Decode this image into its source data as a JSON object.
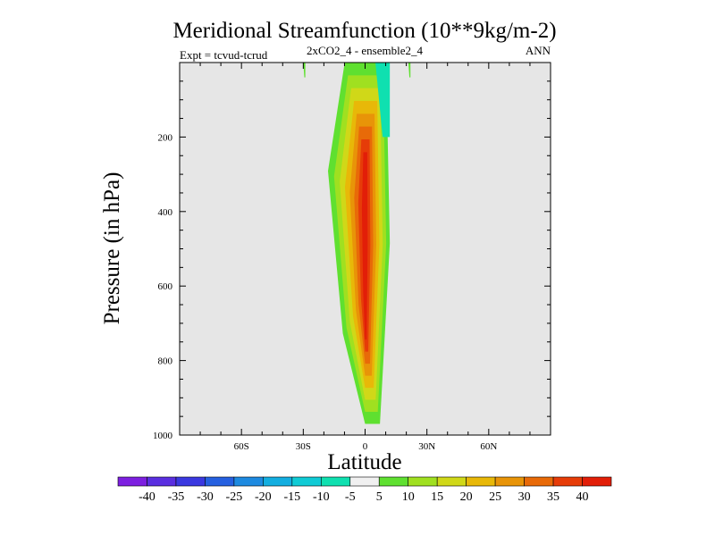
{
  "chart_data": {
    "type": "contour",
    "title": "Meridional Streamfunction (10**9kg/m-2)",
    "subtitle": "2xCO2_4 - ensemble2_4",
    "left_annotation": "Expt = tcvud-tcrud",
    "right_annotation": "ANN",
    "xlabel": "Latitude",
    "ylabel": "Pressure (in hPa)",
    "xlim": [
      -90,
      90
    ],
    "ylim": [
      1000,
      0
    ],
    "x_ticks": [
      -60,
      -30,
      0,
      30,
      60
    ],
    "x_tick_labels": [
      "60S",
      "30S",
      "0",
      "30N",
      "60N"
    ],
    "y_ticks": [
      200,
      400,
      600,
      800,
      1000
    ],
    "y_tick_labels": [
      "200",
      "400",
      "600",
      "800",
      "1000"
    ],
    "background_color": "#e6e6e6",
    "colorbar": {
      "levels": [
        -40,
        -35,
        -30,
        -25,
        -20,
        -15,
        -10,
        -5,
        5,
        10,
        15,
        20,
        25,
        30,
        35,
        40
      ],
      "labels": [
        "-40",
        "-35",
        "-30",
        "-25",
        "-20",
        "-15",
        "-10",
        "-5",
        "5",
        "10",
        "15",
        "20",
        "25",
        "30",
        "35",
        "40"
      ],
      "colors": [
        "#7d1fe0",
        "#5a2ee0",
        "#3a38e0",
        "#2560e0",
        "#1d8ae0",
        "#13aee0",
        "#10cbd5",
        "#0fe0b0",
        "#f0f0f0",
        "#5fe030",
        "#a0e020",
        "#d0d818",
        "#e8b808",
        "#e89408",
        "#e86a08",
        "#e63c08",
        "#e21e08"
      ]
    },
    "features": [
      {
        "kind": "positive_cell",
        "name": "Northern-side Hadley cell",
        "center_lat": 0,
        "center_pressure": 500,
        "peak_level": 40,
        "outer_extent_lat": [
          -18,
          12
        ],
        "pressure_extent": [
          0,
          970
        ]
      },
      {
        "kind": "negative_cell",
        "name": "Upper-level negative cell",
        "lat_extent": [
          5,
          12
        ],
        "pressure_extent": [
          0,
          200
        ],
        "level": -5
      },
      {
        "kind": "positive_patch",
        "lat_extent": [
          21,
          22
        ],
        "pressure_extent": [
          0,
          40
        ],
        "level": 5
      },
      {
        "kind": "positive_patch",
        "lat_extent": [
          -30,
          -29
        ],
        "pressure_extent": [
          0,
          40
        ],
        "level": 5
      }
    ]
  }
}
